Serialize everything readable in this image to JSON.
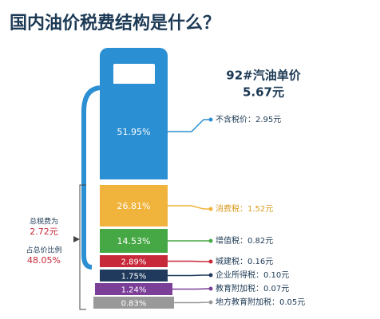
{
  "chart_data": {
    "type": "stacked-bar",
    "title": "国内油价税费结构是什么？",
    "subtitle": "92#汽油单价",
    "total_label": "5.67元",
    "series": [
      {
        "name": "不含税价：2.95元",
        "color": "#2b8fd3",
        "values": [
          51.95
        ],
        "value_labels": [
          "51.95%"
        ]
      },
      {
        "name": "消费税：1.52元",
        "color": "#f0b43c",
        "values": [
          26.81
        ],
        "value_labels": [
          "26.81%"
        ]
      },
      {
        "name": "增值税：0.82元",
        "color": "#45a845",
        "values": [
          14.53
        ],
        "value_labels": [
          "14.53%"
        ]
      },
      {
        "name": "城建税：0.16元",
        "color": "#c7283a",
        "values": [
          2.89
        ],
        "value_labels": [
          "2.89%"
        ]
      },
      {
        "name": "企业所得税：0.10元",
        "color": "#1f3a5c",
        "values": [
          1.75
        ],
        "value_labels": [
          "1.75%"
        ]
      },
      {
        "name": "教育附加税：0.07元",
        "color": "#7b3f98",
        "values": [
          1.24
        ],
        "value_labels": [
          "1.24%"
        ]
      },
      {
        "name": "地方教育附加税：0.05元",
        "color": "#999999",
        "values": [
          0.83
        ],
        "value_labels": [
          "0.83%"
        ]
      }
    ],
    "annotations": [
      "总税费为",
      "2.72元",
      "占总价比例",
      "48.05%"
    ]
  }
}
